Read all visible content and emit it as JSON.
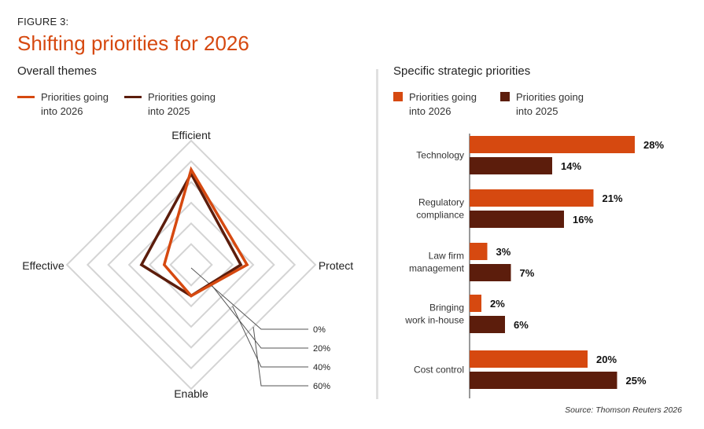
{
  "figure_label": "FIGURE 3:",
  "title": "Shifting priorities for 2026",
  "source": "Source: Thomson Reuters 2026",
  "colors": {
    "series_2026": "#d64910",
    "series_2025": "#5c1d0c",
    "grid": "#d4d4d4",
    "title": "#d64910"
  },
  "chart_data": [
    {
      "type": "radar",
      "title": "Overall themes",
      "axes": [
        "Efficient",
        "Protect",
        "Enable",
        "Effective"
      ],
      "ring_labels": [
        "0%",
        "20%",
        "40%",
        "60%"
      ],
      "rmax": 60,
      "rings": 6,
      "series": [
        {
          "name": "Priorities going into 2026",
          "legend": "Priorities going\ninto 2026",
          "values": [
            46,
            27,
            15,
            13
          ]
        },
        {
          "name": "Priorities going into 2025",
          "legend": "Priorities going\ninto 2025",
          "values": [
            44,
            24,
            15,
            24
          ]
        }
      ]
    },
    {
      "type": "bar",
      "orientation": "horizontal",
      "title": "Specific strategic priorities",
      "categories": [
        "Technology",
        "Regulatory\ncompliance",
        "Law firm\nmanagement",
        "Bringing\nwork in-house",
        "Cost control"
      ],
      "series": [
        {
          "name": "Priorities going into 2026",
          "legend": "Priorities going\ninto 2026",
          "values": [
            28,
            21,
            3,
            2,
            20
          ],
          "labels": [
            "28%",
            "21%",
            "3%",
            "2%",
            "20%"
          ]
        },
        {
          "name": "Priorities going into 2025",
          "legend": "Priorities going\ninto 2025",
          "values": [
            14,
            16,
            7,
            6,
            25
          ],
          "labels": [
            "14%",
            "16%",
            "7%",
            "6%",
            "25%"
          ]
        }
      ],
      "xlim": [
        0,
        28
      ]
    }
  ]
}
